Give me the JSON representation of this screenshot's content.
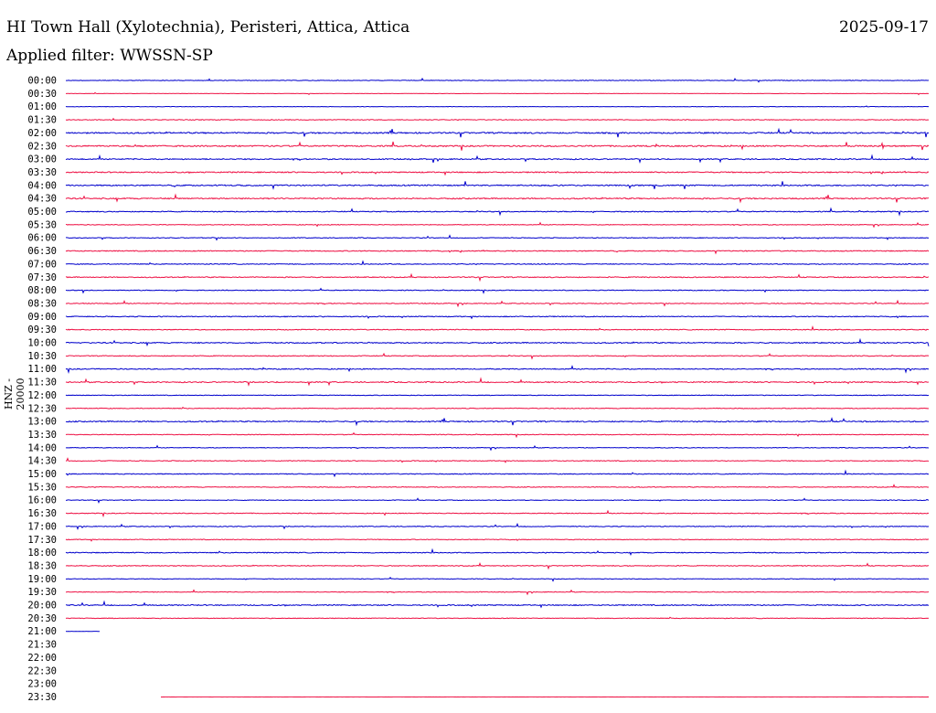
{
  "header": {
    "title": "HI Town Hall (Xylotechnia), Peristeri, Attica, Attica",
    "date": "2025-09-17",
    "filter": "Applied filter: WWSSN-SP"
  },
  "channel_label": "HNZ - 20000",
  "colors": {
    "even": "#0000cc",
    "odd": "#ee1144"
  },
  "chart_data": {
    "type": "line",
    "ylabel": "HNZ - 20000",
    "row_labels": [
      "00:00",
      "00:30",
      "01:00",
      "01:30",
      "02:00",
      "02:30",
      "03:00",
      "03:30",
      "04:00",
      "04:30",
      "05:00",
      "05:30",
      "06:00",
      "06:30",
      "07:00",
      "07:30",
      "08:00",
      "08:30",
      "09:00",
      "09:30",
      "10:00",
      "10:30",
      "11:00",
      "11:30",
      "12:00",
      "12:30",
      "13:00",
      "13:30",
      "14:00",
      "14:30",
      "15:00",
      "15:30",
      "16:00",
      "16:30",
      "17:00",
      "17:30",
      "18:00",
      "18:30",
      "19:00",
      "19:30",
      "20:00",
      "20:30",
      "21:00",
      "21:30",
      "22:00",
      "22:30",
      "23:00",
      "23:30"
    ],
    "row_activity": [
      0.4,
      0.25,
      0.35,
      0.55,
      1.0,
      1.0,
      0.8,
      0.85,
      0.9,
      0.9,
      0.7,
      0.5,
      0.55,
      0.7,
      0.6,
      0.7,
      0.55,
      0.6,
      0.65,
      0.6,
      0.8,
      0.6,
      0.7,
      0.8,
      0.5,
      0.55,
      0.85,
      0.5,
      0.5,
      0.55,
      0.65,
      0.55,
      0.5,
      0.6,
      0.55,
      0.55,
      0.65,
      0.6,
      0.45,
      0.5,
      0.75,
      0.5,
      0.2,
      0,
      0,
      0,
      0,
      0.1
    ],
    "row_extent": [
      1,
      1,
      1,
      1,
      1,
      1,
      1,
      1,
      1,
      1,
      1,
      1,
      1,
      1,
      1,
      1,
      1,
      1,
      1,
      1,
      1,
      1,
      1,
      1,
      1,
      1,
      1,
      1,
      1,
      1,
      1,
      1,
      1,
      1,
      1,
      1,
      1,
      1,
      1,
      1,
      1,
      1,
      0.04,
      0,
      0,
      0,
      0,
      1
    ],
    "row_start": [
      0,
      0,
      0,
      0,
      0,
      0,
      0,
      0,
      0,
      0,
      0,
      0,
      0,
      0,
      0,
      0,
      0,
      0,
      0,
      0,
      0,
      0,
      0,
      0,
      0,
      0,
      0,
      0,
      0,
      0,
      0,
      0,
      0,
      0,
      0,
      0,
      0,
      0,
      0,
      0,
      0,
      0,
      0,
      0,
      0,
      0,
      0,
      0.11
    ]
  }
}
